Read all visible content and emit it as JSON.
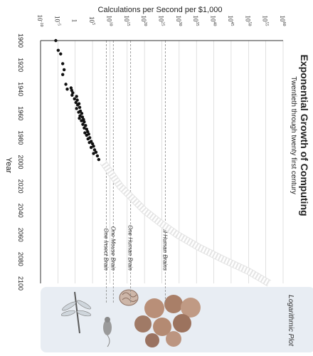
{
  "chart_data": {
    "type": "scatter",
    "title": "Exponential Growth of Computing",
    "subtitle": "Twentieth through twenty first century",
    "xlabel": "Year",
    "ylabel": "Calculations per Second per $1,000",
    "x_ticks": [
      "1900",
      "1920",
      "1940",
      "1960",
      "1980",
      "2000",
      "2020",
      "2040",
      "2060",
      "2080",
      "2100"
    ],
    "x_range": [
      1900,
      2100
    ],
    "y_scale": "log",
    "y_ticks": [
      {
        "base": "10",
        "exp": "-10"
      },
      {
        "base": "10",
        "exp": "-5"
      },
      {
        "base": "1",
        "exp": ""
      },
      {
        "base": "10",
        "exp": "5"
      },
      {
        "base": "10",
        "exp": "10"
      },
      {
        "base": "10",
        "exp": "15"
      },
      {
        "base": "10",
        "exp": "20"
      },
      {
        "base": "10",
        "exp": "25"
      },
      {
        "base": "10",
        "exp": "30"
      },
      {
        "base": "10",
        "exp": "35"
      },
      {
        "base": "10",
        "exp": "40"
      },
      {
        "base": "10",
        "exp": "45"
      },
      {
        "base": "10",
        "exp": "50"
      },
      {
        "base": "10",
        "exp": "55"
      },
      {
        "base": "10",
        "exp": "60"
      }
    ],
    "y_range_log10": [
      -10,
      60
    ],
    "grid": true,
    "side_panel_label": "Logarithmic Plot",
    "reference_lines": [
      {
        "label": "One Insect Brain",
        "log10_value": 9
      },
      {
        "label": "One Mouse Brain",
        "log10_value": 11
      },
      {
        "label": "One Human Brain",
        "log10_value": 16
      },
      {
        "label": "All Human Brains",
        "log10_value": 26
      }
    ],
    "series": [
      {
        "kind": "measured",
        "points": [
          {
            "x": 1900,
            "y": -5.6
          },
          {
            "x": 1908,
            "y": -4.9
          },
          {
            "x": 1911,
            "y": -4.2
          },
          {
            "x": 1919,
            "y": -3.6
          },
          {
            "x": 1924,
            "y": -3.2
          },
          {
            "x": 1928,
            "y": -3.6
          },
          {
            "x": 1936,
            "y": -2.7
          },
          {
            "x": 1939,
            "y": -1.2
          },
          {
            "x": 1940,
            "y": -2.3
          },
          {
            "x": 1941,
            "y": -1.0
          },
          {
            "x": 1943,
            "y": -0.7
          },
          {
            "x": 1945,
            "y": -0.9
          },
          {
            "x": 1946,
            "y": 0.4
          },
          {
            "x": 1948,
            "y": -0.2
          },
          {
            "x": 1949,
            "y": 0.6
          },
          {
            "x": 1951,
            "y": 0.2
          },
          {
            "x": 1952,
            "y": 1.1
          },
          {
            "x": 1953,
            "y": 0.7
          },
          {
            "x": 1955,
            "y": 1.3
          },
          {
            "x": 1956,
            "y": 0.4
          },
          {
            "x": 1958,
            "y": 1.5
          },
          {
            "x": 1959,
            "y": 1.0
          },
          {
            "x": 1960,
            "y": 1.9
          },
          {
            "x": 1962,
            "y": 1.4
          },
          {
            "x": 1963,
            "y": 2.1
          },
          {
            "x": 1964,
            "y": 1.2
          },
          {
            "x": 1965,
            "y": 2.4
          },
          {
            "x": 1966,
            "y": 1.8
          },
          {
            "x": 1967,
            "y": 2.6
          },
          {
            "x": 1969,
            "y": 2.2
          },
          {
            "x": 1970,
            "y": 3.0
          },
          {
            "x": 1972,
            "y": 2.6
          },
          {
            "x": 1973,
            "y": 3.3
          },
          {
            "x": 1975,
            "y": 3.6
          },
          {
            "x": 1976,
            "y": 2.8
          },
          {
            "x": 1977,
            "y": 3.9
          },
          {
            "x": 1978,
            "y": 3.3
          },
          {
            "x": 1980,
            "y": 4.2
          },
          {
            "x": 1981,
            "y": 3.7
          },
          {
            "x": 1983,
            "y": 4.6
          },
          {
            "x": 1984,
            "y": 4.1
          },
          {
            "x": 1985,
            "y": 5.0
          },
          {
            "x": 1987,
            "y": 5.3
          },
          {
            "x": 1988,
            "y": 4.6
          },
          {
            "x": 1990,
            "y": 5.6
          },
          {
            "x": 1992,
            "y": 6.0
          },
          {
            "x": 1993,
            "y": 5.3
          },
          {
            "x": 1995,
            "y": 6.4
          },
          {
            "x": 1998,
            "y": 6.8
          }
        ]
      },
      {
        "kind": "projection",
        "points": [
          {
            "x": 2000,
            "y": 8
          },
          {
            "x": 2010,
            "y": 10.5
          },
          {
            "x": 2020,
            "y": 13
          },
          {
            "x": 2030,
            "y": 16.5
          },
          {
            "x": 2040,
            "y": 20
          },
          {
            "x": 2050,
            "y": 24.5
          },
          {
            "x": 2060,
            "y": 29.5
          },
          {
            "x": 2070,
            "y": 35.5
          },
          {
            "x": 2080,
            "y": 42.5
          },
          {
            "x": 2090,
            "y": 50
          },
          {
            "x": 2100,
            "y": 56
          }
        ]
      }
    ]
  },
  "colors": {
    "dot": "#111111",
    "projection": "#ffffff",
    "projection_shadow": "#e4e4e4",
    "grid": "#cccccc",
    "reference_line": "#8a8a8a",
    "panel": "#e8edf3",
    "axis": "#333333",
    "text": "#222222"
  },
  "icons": [
    "dragonfly-icon",
    "mouse-icon",
    "human-brain-icon",
    "human-faces-icon"
  ]
}
